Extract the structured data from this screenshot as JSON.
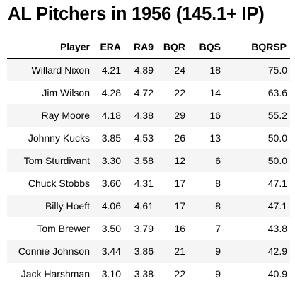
{
  "title": "AL Pitchers in 1956 (145.1+ IP)",
  "table": {
    "headers": [
      "Player",
      "ERA",
      "RA9",
      "BQR",
      "BQS",
      "BQRSP"
    ],
    "rows": [
      [
        "Willard Nixon",
        "4.21",
        "4.89",
        "24",
        "18",
        "75.0"
      ],
      [
        "Jim Wilson",
        "4.28",
        "4.72",
        "22",
        "14",
        "63.6"
      ],
      [
        "Ray Moore",
        "4.18",
        "4.38",
        "29",
        "16",
        "55.2"
      ],
      [
        "Johnny Kucks",
        "3.85",
        "4.53",
        "26",
        "13",
        "50.0"
      ],
      [
        "Tom Sturdivant",
        "3.30",
        "3.58",
        "12",
        "6",
        "50.0"
      ],
      [
        "Chuck Stobbs",
        "3.60",
        "4.31",
        "17",
        "8",
        "47.1"
      ],
      [
        "Billy Hoeft",
        "4.06",
        "4.61",
        "17",
        "8",
        "47.1"
      ],
      [
        "Tom Brewer",
        "3.50",
        "3.79",
        "16",
        "7",
        "43.8"
      ],
      [
        "Connie Johnson",
        "3.44",
        "3.86",
        "21",
        "9",
        "42.9"
      ],
      [
        "Jack Harshman",
        "3.10",
        "3.38",
        "22",
        "9",
        "40.9"
      ]
    ]
  },
  "colors": {
    "stripe": "#f5f5f5",
    "text": "#000000",
    "rule": "#000000"
  }
}
